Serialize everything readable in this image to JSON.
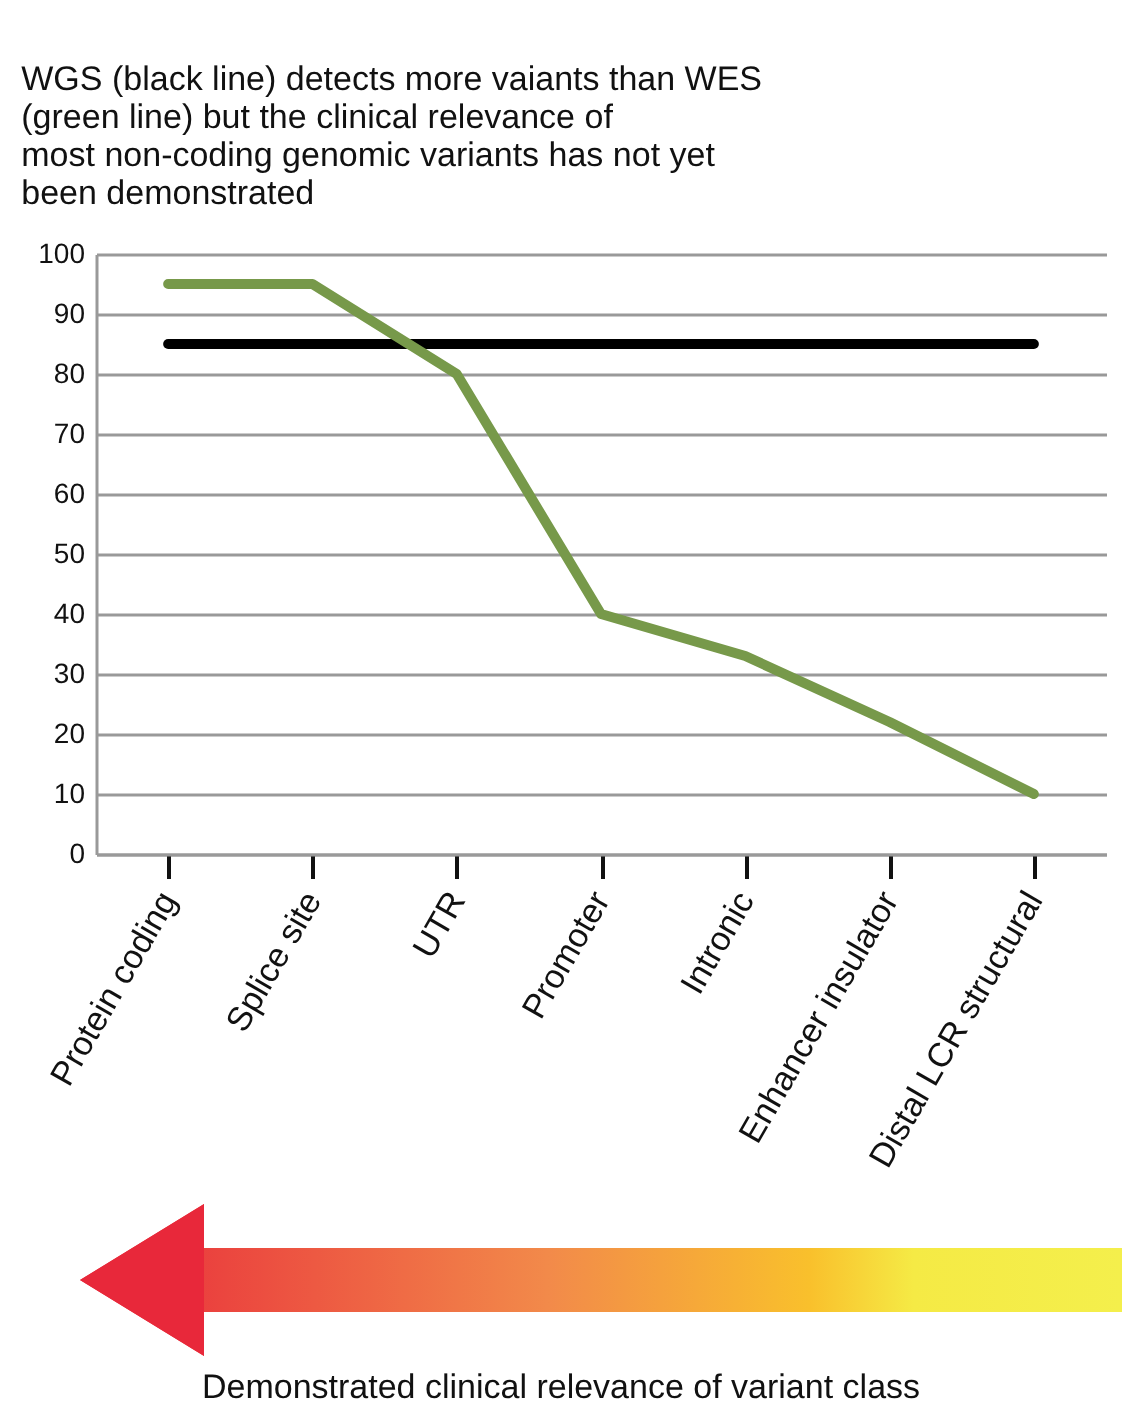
{
  "chart_data": {
    "type": "line",
    "title": "WGS (black line) detects more vaiants than WES (green line) but the clinical relevance of most non-coding genomic variants has not yet been demonstrated",
    "categories": [
      "Protein coding",
      "Splice site",
      "UTR",
      "Promoter",
      "Intronic",
      "Enhancer insulator",
      "Distal LCR structural"
    ],
    "series": [
      {
        "color": "#000000",
        "values": [
          85,
          85,
          85,
          85,
          85,
          85,
          85
        ]
      },
      {
        "color": "#77994a",
        "values": [
          95,
          95,
          80,
          40,
          33,
          22,
          10
        ]
      }
    ],
    "ylim": [
      0,
      100
    ],
    "yticks": [
      0,
      10,
      20,
      30,
      40,
      50,
      60,
      70,
      80,
      90,
      100
    ],
    "grid": "y",
    "annotations": [
      "Demonstrated clinical relevance of variant class"
    ]
  }
}
